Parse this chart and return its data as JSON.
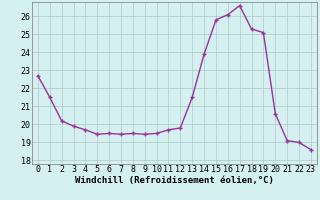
{
  "x": [
    0,
    1,
    2,
    3,
    4,
    5,
    6,
    7,
    8,
    9,
    10,
    11,
    12,
    13,
    14,
    15,
    16,
    17,
    18,
    19,
    20,
    21,
    22,
    23
  ],
  "y": [
    22.7,
    21.5,
    20.2,
    19.9,
    19.7,
    19.45,
    19.5,
    19.45,
    19.5,
    19.45,
    19.5,
    19.7,
    19.8,
    21.5,
    23.9,
    25.8,
    26.1,
    26.6,
    25.3,
    25.1,
    20.6,
    19.1,
    19.0,
    18.6
  ],
  "line_color": "#993399",
  "marker_color": "#993399",
  "bg_color": "#d4f0f0",
  "grid_color": "#b0c8c8",
  "xlabel": "Windchill (Refroidissement éolien,°C)",
  "ylim": [
    17.8,
    26.8
  ],
  "xlim": [
    -0.5,
    23.5
  ],
  "yticks": [
    18,
    19,
    20,
    21,
    22,
    23,
    24,
    25,
    26
  ],
  "xticks": [
    0,
    1,
    2,
    3,
    4,
    5,
    6,
    7,
    8,
    9,
    10,
    11,
    12,
    13,
    14,
    15,
    16,
    17,
    18,
    19,
    20,
    21,
    22,
    23
  ],
  "xlabel_fontsize": 6.5,
  "tick_fontsize": 6.0,
  "line_width": 1.0,
  "marker_size": 3.5
}
